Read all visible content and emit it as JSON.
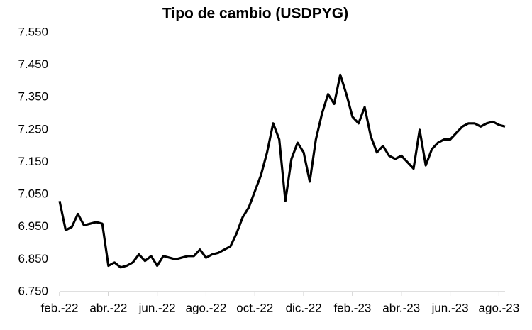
{
  "chart_data": {
    "type": "line",
    "title": "Tipo de cambio (USDPYG)",
    "categories": [
      "feb.-22",
      null,
      null,
      null,
      null,
      null,
      null,
      null,
      "abr.-22",
      null,
      null,
      null,
      null,
      null,
      null,
      null,
      "jun.-22",
      null,
      null,
      null,
      null,
      null,
      null,
      null,
      "ago.-22",
      null,
      null,
      null,
      null,
      null,
      null,
      null,
      "oct.-22",
      null,
      null,
      null,
      null,
      null,
      null,
      null,
      "dic.-22",
      null,
      null,
      null,
      null,
      null,
      null,
      null,
      "feb.-23",
      null,
      null,
      null,
      null,
      null,
      null,
      null,
      "abr.-23",
      null,
      null,
      null,
      null,
      null,
      null,
      null,
      "jun.-23",
      null,
      null,
      null,
      null,
      null,
      null,
      null,
      "ago.-23",
      null
    ],
    "series": [
      {
        "name": "USDPYG",
        "color": "#000000",
        "values": [
          7030,
          6940,
          6950,
          6990,
          6955,
          6960,
          6965,
          6960,
          6830,
          6840,
          6825,
          6830,
          6840,
          6865,
          6845,
          6860,
          6830,
          6860,
          6855,
          6850,
          6855,
          6860,
          6860,
          6880,
          6855,
          6865,
          6870,
          6880,
          6890,
          6930,
          6980,
          7010,
          7060,
          7110,
          7180,
          7270,
          7220,
          7030,
          7160,
          7210,
          7180,
          7090,
          7220,
          7300,
          7360,
          7330,
          7420,
          7360,
          7290,
          7270,
          7320,
          7230,
          7180,
          7200,
          7170,
          7160,
          7170,
          7150,
          7130,
          7250,
          7140,
          7190,
          7210,
          7220,
          7220,
          7240,
          7260,
          7270,
          7270,
          7260,
          7270,
          7275,
          7265,
          7260
        ]
      }
    ],
    "ylim": [
      6750,
      7550
    ],
    "yticks": [
      {
        "value": 6750,
        "label": "6.750"
      },
      {
        "value": 6850,
        "label": "6.850"
      },
      {
        "value": 6950,
        "label": "6.950"
      },
      {
        "value": 7050,
        "label": "7.050"
      },
      {
        "value": 7150,
        "label": "7.150"
      },
      {
        "value": 7250,
        "label": "7.250"
      },
      {
        "value": 7350,
        "label": "7.350"
      },
      {
        "value": 7450,
        "label": "7.450"
      },
      {
        "value": 7550,
        "label": "7.550"
      }
    ],
    "grid": false
  }
}
